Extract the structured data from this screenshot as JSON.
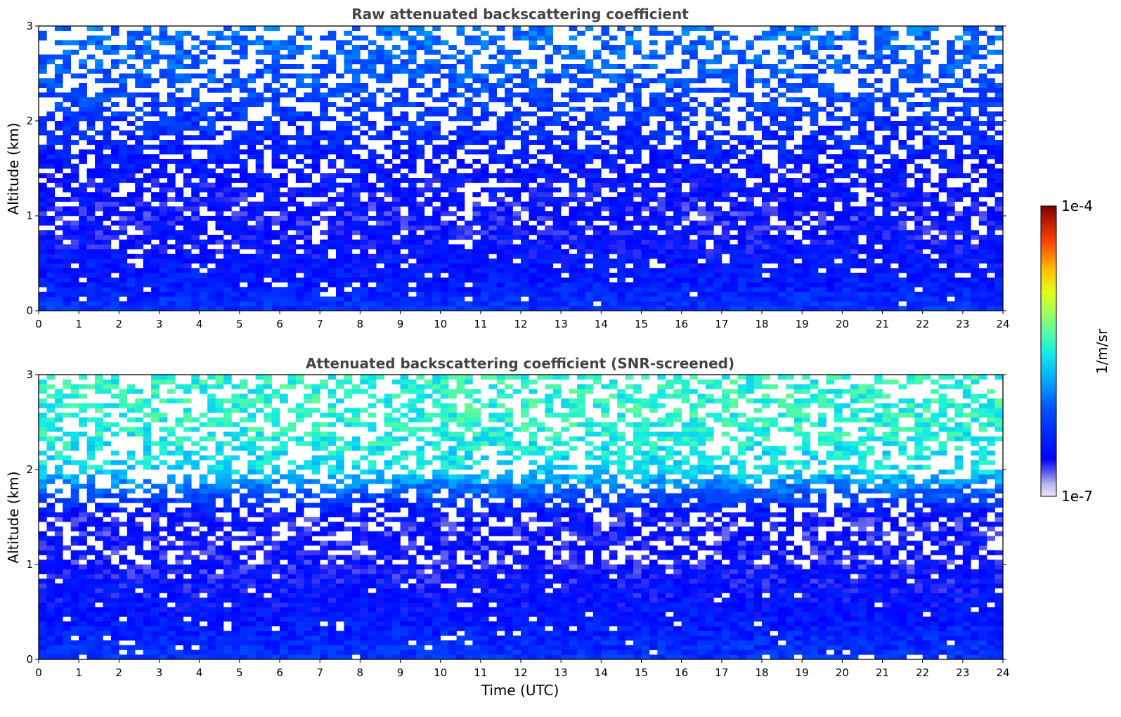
{
  "chart_data": [
    {
      "type": "heatmap",
      "title": "Raw attenuated backscattering coefficient",
      "xlabel": "",
      "ylabel": "Altitude (km)",
      "xlim": [
        0,
        24
      ],
      "ylim": [
        0,
        3
      ],
      "xticks": [
        "0",
        "1",
        "2",
        "3",
        "4",
        "5",
        "6",
        "7",
        "8",
        "9",
        "10",
        "11",
        "12",
        "13",
        "14",
        "15",
        "16",
        "17",
        "18",
        "19",
        "20",
        "21",
        "22",
        "23",
        "24"
      ],
      "yticks": [
        "0",
        "1",
        "2",
        "3"
      ],
      "profile": [
        {
          "altitude_km": 0.05,
          "level_log10": -6.3
        },
        {
          "altitude_km": 0.3,
          "level_log10": -6.45
        },
        {
          "altitude_km": 0.7,
          "level_log10": -6.55
        },
        {
          "altitude_km": 1.0,
          "level_log10": -6.6
        },
        {
          "altitude_km": 1.5,
          "level_log10": -6.5
        },
        {
          "altitude_km": 2.0,
          "level_log10": -6.3
        },
        {
          "altitude_km": 2.5,
          "level_log10": -6.1
        },
        {
          "altitude_km": 3.0,
          "level_log10": -6.0
        }
      ],
      "grid": false
    },
    {
      "type": "heatmap",
      "title": "Attenuated backscattering coefficient (SNR-screened)",
      "xlabel": "Time (UTC)",
      "ylabel": "Altitude (km)",
      "xlim": [
        0,
        24
      ],
      "ylim": [
        0,
        3
      ],
      "xticks": [
        "0",
        "1",
        "2",
        "3",
        "4",
        "5",
        "6",
        "7",
        "8",
        "9",
        "10",
        "11",
        "12",
        "13",
        "14",
        "15",
        "16",
        "17",
        "18",
        "19",
        "20",
        "21",
        "22",
        "23",
        "24"
      ],
      "yticks": [
        "0",
        "1",
        "2",
        "3"
      ],
      "profile": [
        {
          "altitude_km": 0.05,
          "level_log10": -6.3
        },
        {
          "altitude_km": 0.5,
          "level_log10": -6.5
        },
        {
          "altitude_km": 1.0,
          "level_log10": -6.6
        },
        {
          "altitude_km": 1.5,
          "level_log10": -6.6
        },
        {
          "altitude_km": 2.0,
          "level_log10": -5.6
        },
        {
          "altitude_km": 2.5,
          "level_log10": -5.45
        },
        {
          "altitude_km": 3.0,
          "level_log10": -5.45
        }
      ],
      "grid": false
    }
  ],
  "colorbar": {
    "label": "1/m/sr",
    "max_label": "1e-4",
    "min_label": "1e-7",
    "min": 1e-07,
    "max": 0.0001,
    "scale": "log",
    "colormap": "jet"
  }
}
